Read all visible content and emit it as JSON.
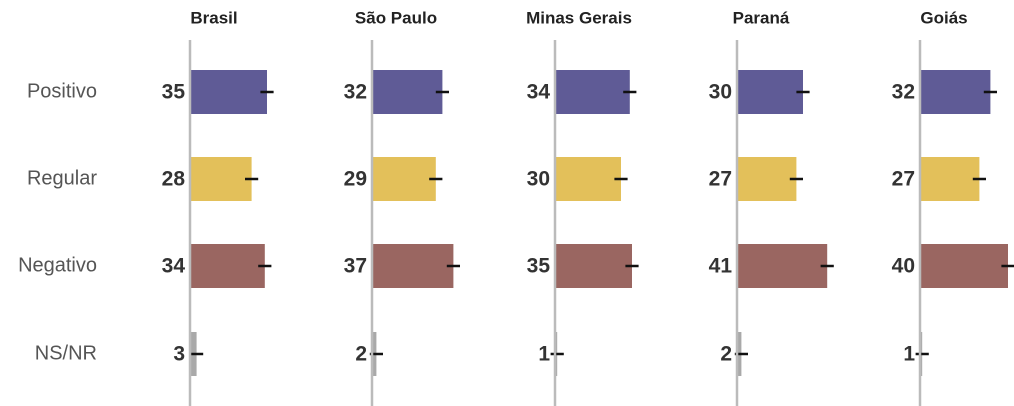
{
  "chart_data": {
    "type": "bar",
    "categories": [
      "Positivo",
      "Regular",
      "Negativo",
      "NS/NR"
    ],
    "colors": [
      "#5f5b96",
      "#e3c05a",
      "#9a6661",
      "#a9a9a9"
    ],
    "xlim": [
      0,
      45
    ],
    "panels": [
      {
        "title": "Brasil",
        "values": [
          35,
          28,
          34,
          3
        ],
        "errors": [
          3,
          3,
          3,
          3
        ]
      },
      {
        "title": "São Paulo",
        "values": [
          32,
          29,
          37,
          2
        ],
        "errors": [
          3,
          3,
          3,
          3
        ]
      },
      {
        "title": "Minas Gerais",
        "values": [
          34,
          30,
          35,
          1
        ],
        "errors": [
          3,
          3,
          3,
          3
        ]
      },
      {
        "title": "Paraná",
        "values": [
          30,
          27,
          41,
          2
        ],
        "errors": [
          3,
          3,
          3,
          3
        ]
      },
      {
        "title": "Goiás",
        "values": [
          32,
          27,
          40,
          1
        ],
        "errors": [
          3,
          3,
          3,
          3
        ]
      }
    ]
  }
}
